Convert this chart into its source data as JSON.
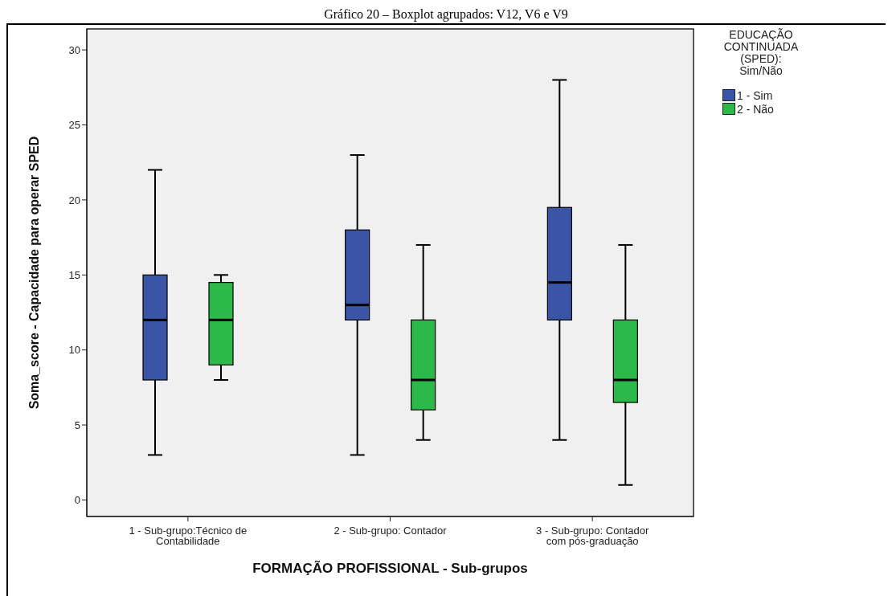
{
  "chart_data": {
    "type": "box",
    "title": "Gráfico 20 – Boxplot agrupados: V12, V6 e V9",
    "xlabel": "FORMAÇÃO PROFISSIONAL - Sub-grupos",
    "ylabel": "Soma_score - Capacidade para operar SPED",
    "legend_title": "EDUCAÇÃO CONTINUADA (SPED): Sim/Não",
    "legend": "top right",
    "grid": false,
    "categories": [
      "1 - Sub-grupo:Técnico de Contabilidade",
      "2 - Sub-grupo: Contador",
      "3 - Sub-grupo: Contador com pós-graduação"
    ],
    "ylim": [
      -1.1,
      31.4
    ],
    "yticks": [
      0,
      5,
      10,
      15,
      20,
      25,
      30
    ],
    "series": [
      {
        "name": "1 - Sim",
        "color": "#3a55a5",
        "boxes": [
          {
            "low": 3,
            "q1": 8,
            "median": 12,
            "q3": 15,
            "high": 22
          },
          {
            "low": 3,
            "q1": 12,
            "median": 13,
            "q3": 18,
            "high": 23
          },
          {
            "low": 4,
            "q1": 12,
            "median": 14.5,
            "q3": 19.5,
            "high": 28
          }
        ]
      },
      {
        "name": "2 - Não",
        "color": "#2db84a",
        "boxes": [
          {
            "low": 8,
            "q1": 9,
            "median": 12,
            "q3": 14.5,
            "high": 15
          },
          {
            "low": 4,
            "q1": 6,
            "median": 8,
            "q3": 12,
            "high": 17
          },
          {
            "low": 1,
            "q1": 6.5,
            "median": 8,
            "q3": 12,
            "high": 17
          }
        ]
      }
    ]
  }
}
